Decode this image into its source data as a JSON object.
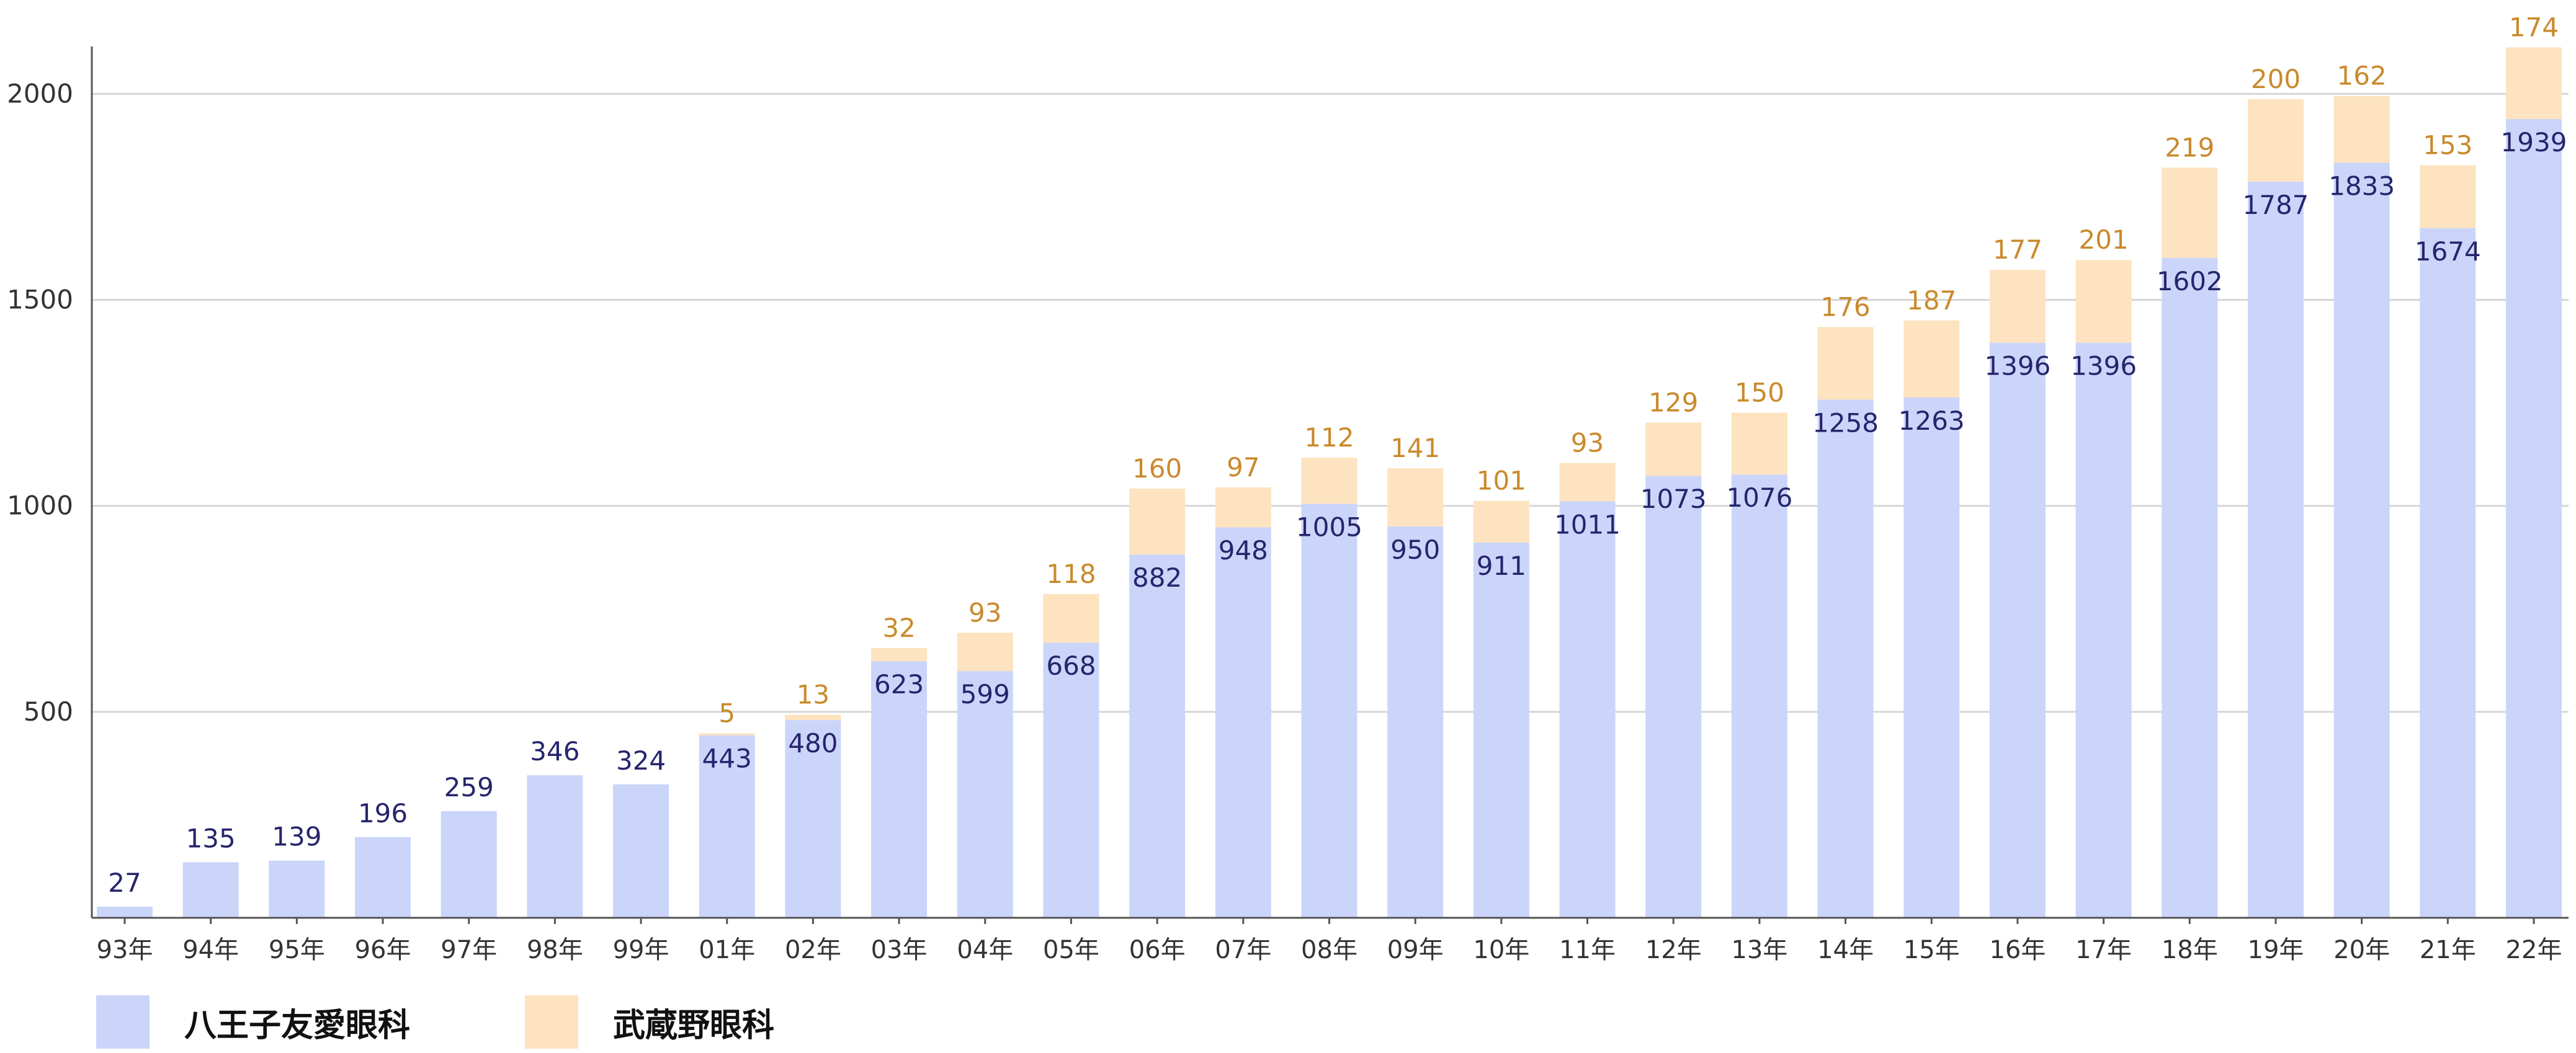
{
  "chart_data": {
    "type": "bar",
    "stacked": true,
    "categories": [
      "93年",
      "94年",
      "95年",
      "96年",
      "97年",
      "98年",
      "99年",
      "01年",
      "02年",
      "03年",
      "04年",
      "05年",
      "06年",
      "07年",
      "08年",
      "09年",
      "10年",
      "11年",
      "12年",
      "13年",
      "14年",
      "15年",
      "16年",
      "17年",
      "18年",
      "19年",
      "20年",
      "21年",
      "22年"
    ],
    "series": [
      {
        "name": "八王子友愛眼科",
        "color": "#cbd5fa",
        "label_color": "#26256b",
        "values": [
          27,
          135,
          139,
          196,
          259,
          346,
          324,
          443,
          480,
          623,
          599,
          668,
          882,
          948,
          1005,
          950,
          911,
          1011,
          1073,
          1076,
          1258,
          1263,
          1396,
          1396,
          1602,
          1787,
          1833,
          1674,
          1939
        ]
      },
      {
        "name": "武蔵野眼科",
        "color": "#fde3bf",
        "label_color": "#c98a2c",
        "values": [
          null,
          null,
          null,
          null,
          null,
          null,
          null,
          5,
          13,
          32,
          93,
          118,
          160,
          97,
          112,
          141,
          101,
          93,
          129,
          150,
          176,
          187,
          177,
          201,
          219,
          200,
          162,
          153,
          174
        ]
      }
    ],
    "yticks": [
      500,
      1000,
      1500,
      2000
    ],
    "ylim": [
      0,
      2250
    ],
    "grid": true,
    "legend_position": "bottom-left"
  }
}
